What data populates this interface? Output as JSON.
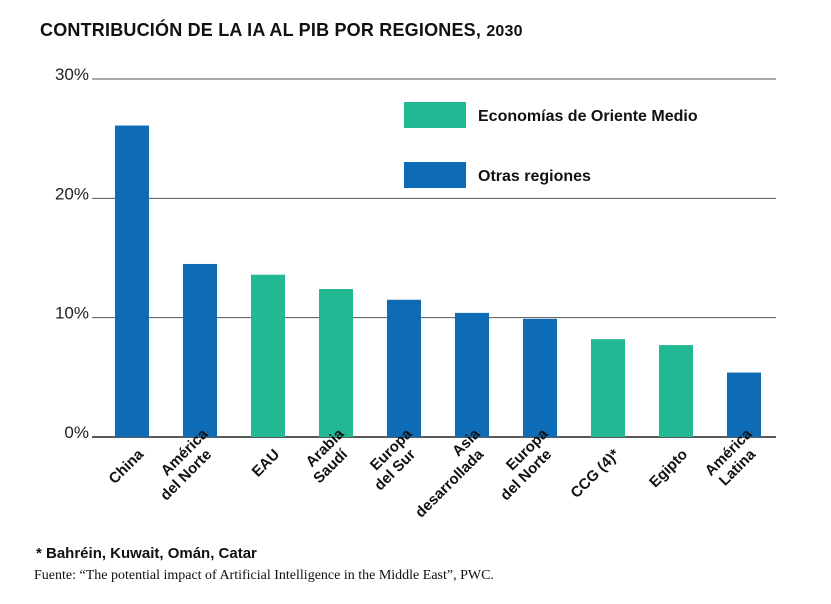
{
  "title": {
    "main": "CONTRIBUCIÓN DE LA IA AL PIB POR REGIONES,",
    "year": "2030"
  },
  "colors": {
    "middle_east": "#22b893",
    "other": "#0e6bb5",
    "grid": "#555555"
  },
  "chart_data": {
    "type": "bar",
    "title": "CONTRIBUCIÓN DE LA IA AL PIB POR REGIONES, 2030",
    "xlabel": "",
    "ylabel": "",
    "ylim": [
      0,
      30
    ],
    "yticks": [
      0,
      10,
      20,
      30
    ],
    "ytick_labels": [
      "0%",
      "10%",
      "20%",
      "30%"
    ],
    "grid": true,
    "legend_position": "top-right",
    "categories": [
      [
        "China"
      ],
      [
        "América",
        "del Norte"
      ],
      [
        "EAU"
      ],
      [
        "Arabia",
        "Saudí"
      ],
      [
        "Europa",
        "del Sur"
      ],
      [
        "Asia",
        "desarrollada"
      ],
      [
        "Europa",
        "del Norte"
      ],
      [
        "CCG (4)*"
      ],
      [
        "Egipto"
      ],
      [
        "América",
        "Latina"
      ]
    ],
    "values": [
      26.1,
      14.5,
      13.6,
      12.4,
      11.5,
      10.4,
      9.9,
      8.2,
      7.7,
      5.4
    ],
    "groups": [
      "other",
      "other",
      "middle_east",
      "middle_east",
      "other",
      "other",
      "other",
      "middle_east",
      "middle_east",
      "other"
    ],
    "legend": [
      {
        "key": "middle_east",
        "label": "Economías de Oriente Medio"
      },
      {
        "key": "other",
        "label": "Otras regiones"
      }
    ]
  },
  "footnote": "* Bahréin, Kuwait, Omán, Catar",
  "source": "Fuente: “The potential impact of Artificial Intelligence in the Middle East”, PWC."
}
